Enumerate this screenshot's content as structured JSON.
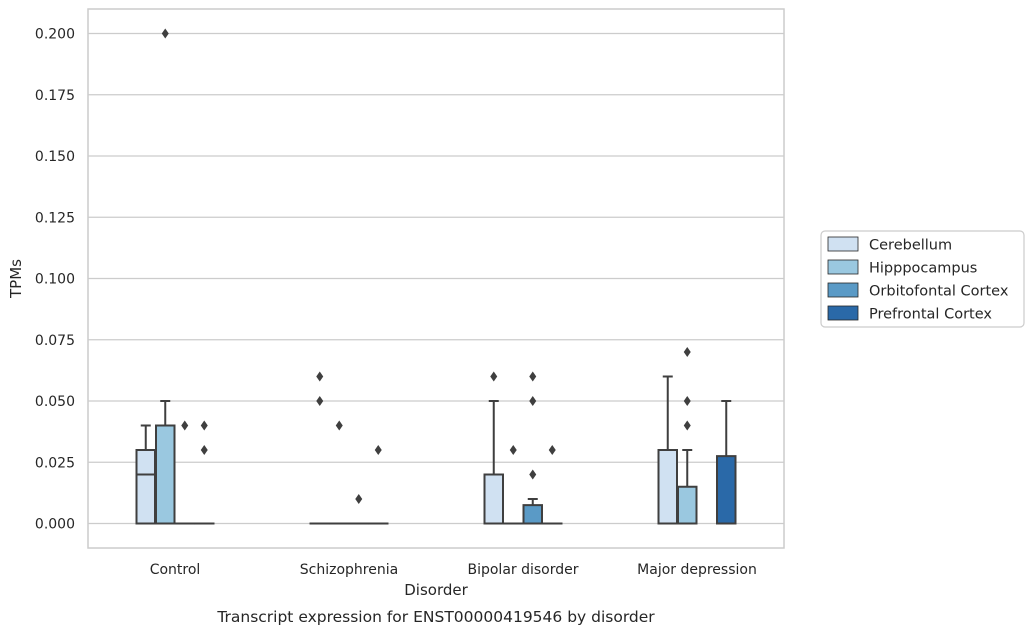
{
  "chart_data": {
    "type": "boxplot",
    "title": "",
    "caption": "Transcript expression for ENST00000419546 by disorder",
    "xlabel": "Disorder",
    "ylabel": "TPMs",
    "ylim": [
      -0.01,
      0.21
    ],
    "yticks": [
      "0.000",
      "0.025",
      "0.050",
      "0.075",
      "0.100",
      "0.125",
      "0.150",
      "0.175",
      "0.200"
    ],
    "ytick_values": [
      0,
      0.025,
      0.05,
      0.075,
      0.1,
      0.125,
      0.15,
      0.175,
      0.2
    ],
    "grid": "horizontal",
    "legend_position": "right",
    "categories": [
      "Control",
      "Schizophrenia",
      "Bipolar disorder",
      "Major depression"
    ],
    "series": [
      {
        "name": "Cerebellum",
        "color": "#d0e1f2",
        "boxes": [
          {
            "q1": 0,
            "median": 0.02,
            "q3": 0.03,
            "whislo": 0,
            "whishi": 0.04,
            "fliers": []
          },
          {
            "q1": 0,
            "median": 0,
            "q3": 0,
            "whislo": 0,
            "whishi": 0,
            "fliers": [
              0.06,
              0.05
            ]
          },
          {
            "q1": 0,
            "median": 0,
            "q3": 0.02,
            "whislo": 0,
            "whishi": 0.05,
            "fliers": [
              0.06
            ]
          },
          {
            "q1": 0,
            "median": 0,
            "q3": 0.03,
            "whislo": 0,
            "whishi": 0.06,
            "fliers": []
          }
        ]
      },
      {
        "name": "Hipppocampus",
        "color": "#9ac8e0",
        "boxes": [
          {
            "q1": 0,
            "median": 0,
            "q3": 0.04,
            "whislo": 0,
            "whishi": 0.05,
            "fliers": [
              0.2
            ]
          },
          {
            "q1": 0,
            "median": 0,
            "q3": 0,
            "whislo": 0,
            "whishi": 0,
            "fliers": [
              0.04
            ]
          },
          {
            "q1": 0,
            "median": 0,
            "q3": 0,
            "whislo": 0,
            "whishi": 0,
            "fliers": [
              0.03
            ]
          },
          {
            "q1": 0,
            "median": 0,
            "q3": 0.015,
            "whislo": 0,
            "whishi": 0.03,
            "fliers": [
              0.07,
              0.05,
              0.04
            ]
          }
        ]
      },
      {
        "name": "Orbitofontal Cortex",
        "color": "#5a9ac6",
        "boxes": [
          {
            "q1": 0,
            "median": 0,
            "q3": 0,
            "whislo": 0,
            "whishi": 0,
            "fliers": [
              0.04
            ]
          },
          {
            "q1": 0,
            "median": 0,
            "q3": 0,
            "whislo": 0,
            "whishi": 0,
            "fliers": [
              0.01
            ]
          },
          {
            "q1": 0,
            "median": 0,
            "q3": 0.0075,
            "whislo": 0,
            "whishi": 0.01,
            "fliers": [
              0.06,
              0.05,
              0.02
            ]
          },
          null
        ]
      },
      {
        "name": "Prefrontal Cortex",
        "color": "#2a69a8",
        "boxes": [
          {
            "q1": 0,
            "median": 0,
            "q3": 0,
            "whislo": 0,
            "whishi": 0,
            "fliers": [
              0.04,
              0.03
            ]
          },
          {
            "q1": 0,
            "median": 0,
            "q3": 0,
            "whislo": 0,
            "whishi": 0,
            "fliers": [
              0.03
            ]
          },
          {
            "q1": 0,
            "median": 0,
            "q3": 0,
            "whislo": 0,
            "whishi": 0,
            "fliers": [
              0.03
            ]
          },
          {
            "q1": 0,
            "median": 0,
            "q3": 0.0275,
            "whislo": 0,
            "whishi": 0.05,
            "fliers": []
          }
        ]
      }
    ]
  }
}
